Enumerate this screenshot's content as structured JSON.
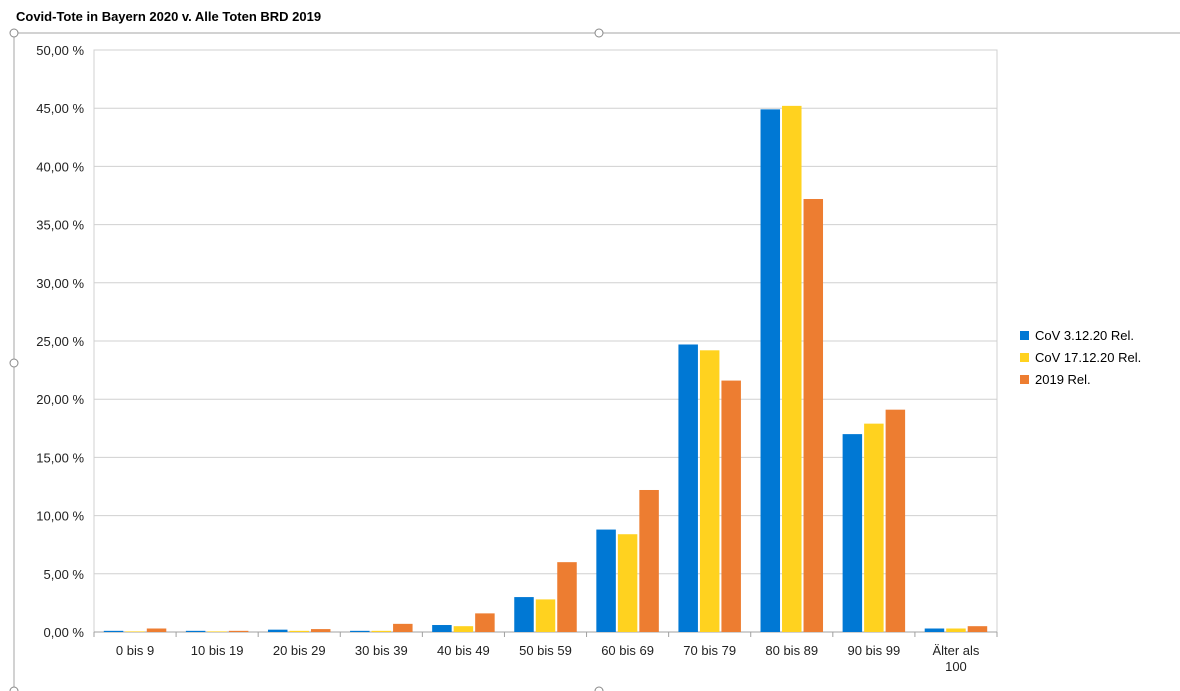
{
  "chart_data": {
    "type": "bar",
    "title": "Covid-Tote in Bayern 2020 v. Alle Toten BRD 2019",
    "categories": [
      "0 bis 9",
      "10 bis 19",
      "20 bis 29",
      "30 bis 39",
      "40 bis 49",
      "50 bis 59",
      "60 bis 69",
      "70 bis 79",
      "80 bis 89",
      "90 bis 99",
      "Älter als 100"
    ],
    "series": [
      {
        "name": "CoV 3.12.20 Rel.",
        "color": "#0078d4",
        "values": [
          0.1,
          0.1,
          0.2,
          0.1,
          0.6,
          3.0,
          8.8,
          24.7,
          44.9,
          17.0,
          0.3
        ]
      },
      {
        "name": "CoV 17.12.20 Rel.",
        "color": "#ffd21f",
        "values": [
          0.05,
          0.05,
          0.1,
          0.1,
          0.5,
          2.8,
          8.4,
          24.2,
          45.2,
          17.9,
          0.3
        ]
      },
      {
        "name": "2019 Rel.",
        "color": "#ed7d31",
        "values": [
          0.3,
          0.1,
          0.25,
          0.7,
          1.6,
          6.0,
          12.2,
          21.6,
          37.2,
          19.1,
          0.5
        ]
      }
    ],
    "ylim": [
      0,
      50
    ],
    "yticks": [
      "0,00 %",
      "5,00 %",
      "10,00 %",
      "15,00 %",
      "20,00 %",
      "25,00 %",
      "30,00 %",
      "35,00 %",
      "40,00 %",
      "45,00 %",
      "50,00 %"
    ],
    "legend_position": "right",
    "grid": true
  }
}
